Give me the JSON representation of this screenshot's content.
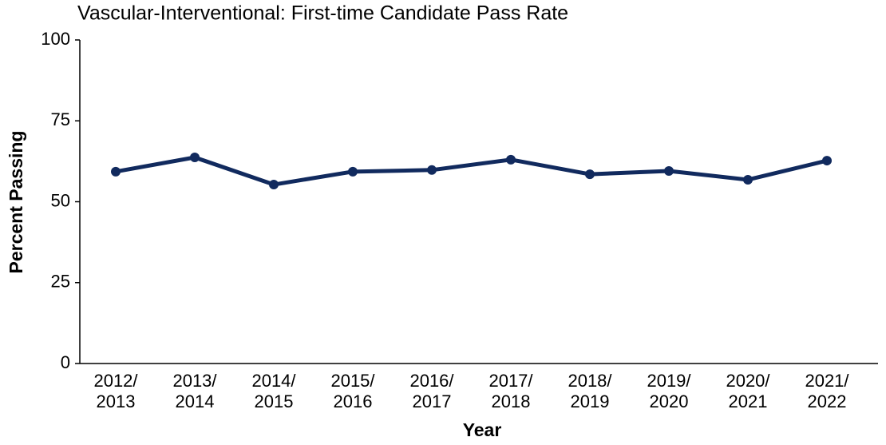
{
  "chart_data": {
    "type": "line",
    "title": "Vascular-Interventional: First-time Candidate Pass Rate",
    "xlabel": "Year",
    "ylabel": "Percent Passing",
    "categories": [
      "2012/\n2013",
      "2013/\n2014",
      "2014/\n2015",
      "2015/\n2016",
      "2016/\n2017",
      "2017/\n2018",
      "2018/\n2019",
      "2019/\n2020",
      "2020/\n2021",
      "2021/\n2022"
    ],
    "series": [
      {
        "name": "Pass Rate",
        "color": "#112a5e",
        "values": [
          59.3,
          63.7,
          55.3,
          59.3,
          59.8,
          63.0,
          58.5,
          59.5,
          56.8,
          62.7
        ]
      }
    ],
    "ylim": [
      0,
      100
    ],
    "yticks": [
      0,
      25,
      50,
      75,
      100
    ],
    "grid": false
  }
}
